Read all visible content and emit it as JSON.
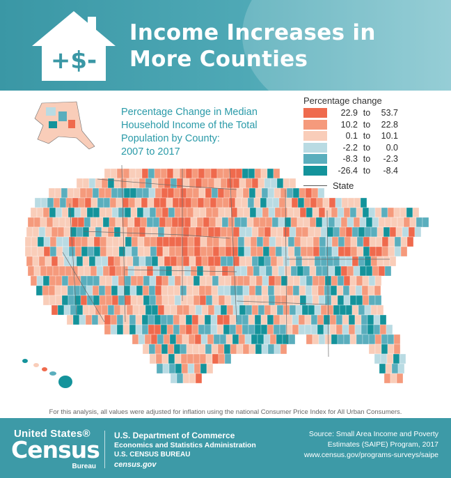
{
  "header": {
    "title_line1": "Income Increases in",
    "title_line2": "More Counties",
    "icon_text": "+$-",
    "bg_color": "#3f9fac"
  },
  "map_title": {
    "line1": "Percentage Change in Median",
    "line2": "Household Income of the Total",
    "line3": "Population by County:",
    "line4": "2007 to 2017",
    "color": "#2a9aa8"
  },
  "legend": {
    "heading": "Percentage change",
    "to_word": "to",
    "items": [
      {
        "low": "22.9",
        "high": "53.7",
        "color": "#ef6a4d"
      },
      {
        "low": "10.2",
        "high": "22.8",
        "color": "#f59a7c"
      },
      {
        "low": "0.1",
        "high": "10.1",
        "color": "#f9cdb9"
      },
      {
        "low": "-2.2",
        "high": "0.0",
        "color": "#b9dbe3"
      },
      {
        "low": "-8.3",
        "high": "-2.3",
        "color": "#5aaebd"
      },
      {
        "low": "-26.4",
        "high": "-8.4",
        "color": "#14939b"
      }
    ],
    "state_label": "State"
  },
  "footnote": "For this analysis, all values were adjusted for inflation using the national Consumer Price Index for All Urban Consumers.",
  "footer": {
    "logo_us": "United States®",
    "logo_census": "Census",
    "logo_bureau": "Bureau",
    "dept": "U.S. Department of Commerce",
    "admin": "Economics and Statistics Administration",
    "bureau": "U.S. CENSUS BUREAU",
    "website": "census.gov",
    "source_line1": "Source: Small Area Income and Poverty",
    "source_line2": "Estimates (SAIPE) Program, 2017",
    "source_line3": "www.census.gov/programs-surveys/saipe",
    "bg_color": "#3d9aa7"
  }
}
